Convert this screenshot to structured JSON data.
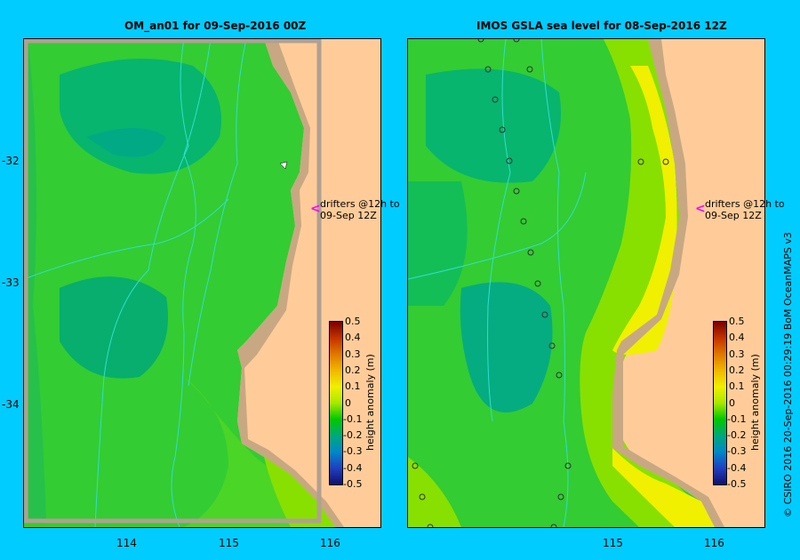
{
  "left_panel": {
    "title": "OM_an01  for 09-Sep-2016 00Z",
    "drifters_note_line1": "drifters @12h to",
    "drifters_note_line2": "09-Sep 12Z"
  },
  "right_panel": {
    "title": "IMOS  GSLA sea level   for 08-Sep-2016 12Z",
    "drifters_note_line1": "drifters @12h to",
    "drifters_note_line2": "09-Sep 12Z"
  },
  "axes": {
    "lat_labels": [
      "-32",
      "-33",
      "-34"
    ],
    "lon_labels": [
      "114",
      "115",
      "116"
    ]
  },
  "colorbar": {
    "label": "height anomaly (m)",
    "ticks": [
      "0.5",
      "0.4",
      "0.3",
      "0.2",
      "0.1",
      "0",
      "-0.1",
      "-0.2",
      "-0.3",
      "-0.4",
      "-0.5"
    ],
    "colors": [
      "#7a0000",
      "#c43200",
      "#e07800",
      "#f0b800",
      "#f0f000",
      "#a8e800",
      "#00c800",
      "#00a87a",
      "#0088c8",
      "#2040c0",
      "#101070"
    ]
  },
  "credit": "© CSIRO 2016   20-Sep-2016 00:29:19 BoM OceanMAPS v3",
  "colors": {
    "background": "#00ccff",
    "land": "#ffcc99",
    "coast": "#c8a882",
    "drifter_arrow": "#ff00ff"
  }
}
